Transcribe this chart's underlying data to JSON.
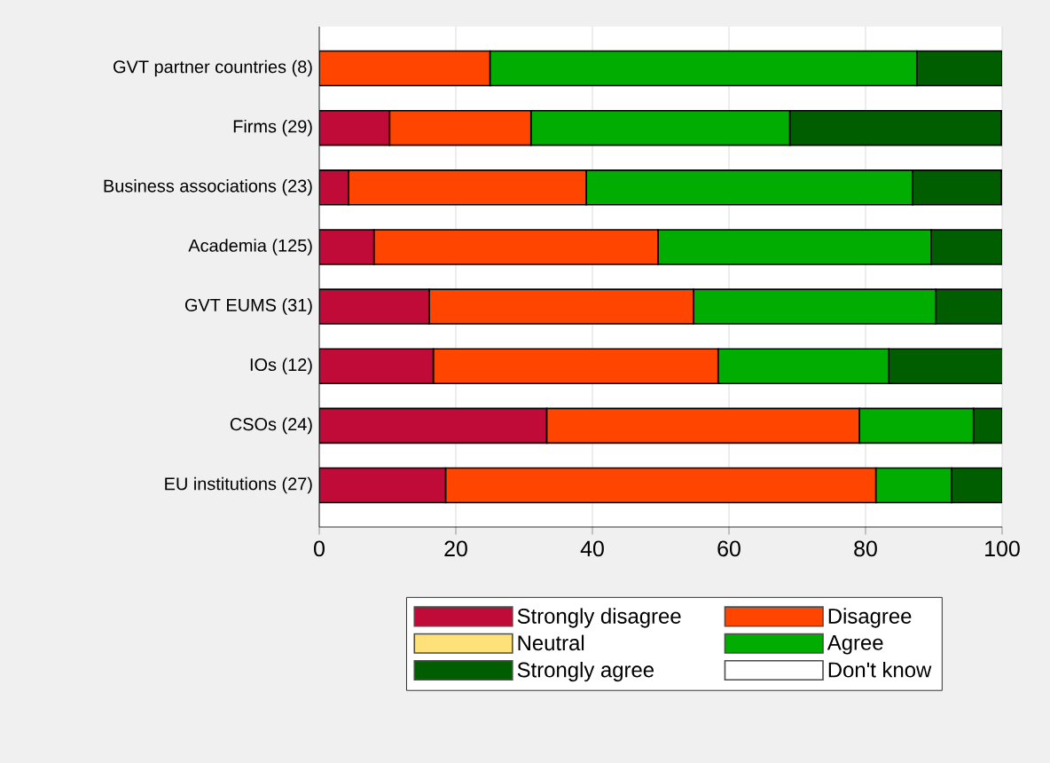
{
  "chart_data": {
    "type": "bar",
    "orientation": "horizontal",
    "stacked": true,
    "categories": [
      "GVT partner countries (8)",
      "Firms (29)",
      "Business associations (23)",
      "Academia (125)",
      "GVT EUMS (31)",
      "IOs (12)",
      "CSOs (24)",
      "EU institutions (27)"
    ],
    "series": [
      {
        "name": "Strongly disagree",
        "color": "#c00a38",
        "values": [
          0,
          10.3,
          4.3,
          8.0,
          16.1,
          16.7,
          33.3,
          18.5
        ]
      },
      {
        "name": "Disagree",
        "color": "#ff4500",
        "values": [
          25.0,
          20.7,
          34.8,
          41.6,
          38.7,
          41.7,
          45.8,
          63.0
        ]
      },
      {
        "name": "Neutral",
        "color": "#ffe17a",
        "values": [
          0,
          0,
          0,
          0,
          0,
          0,
          0,
          0
        ]
      },
      {
        "name": "Agree",
        "color": "#00ad00",
        "values": [
          62.5,
          37.9,
          47.8,
          40.0,
          35.5,
          25.0,
          16.7,
          11.1
        ]
      },
      {
        "name": "Strongly agree",
        "color": "#005e00",
        "values": [
          12.5,
          31.0,
          13.0,
          10.4,
          9.7,
          16.7,
          4.2,
          7.4
        ]
      },
      {
        "name": "Don't know",
        "color": "#ffffff",
        "values": [
          0,
          0,
          0,
          0,
          0,
          0,
          0,
          0
        ]
      }
    ],
    "xlim": [
      0,
      100
    ],
    "xticks": [
      0,
      20,
      40,
      60,
      80,
      100
    ],
    "grid": "x",
    "legend": "bottom"
  }
}
